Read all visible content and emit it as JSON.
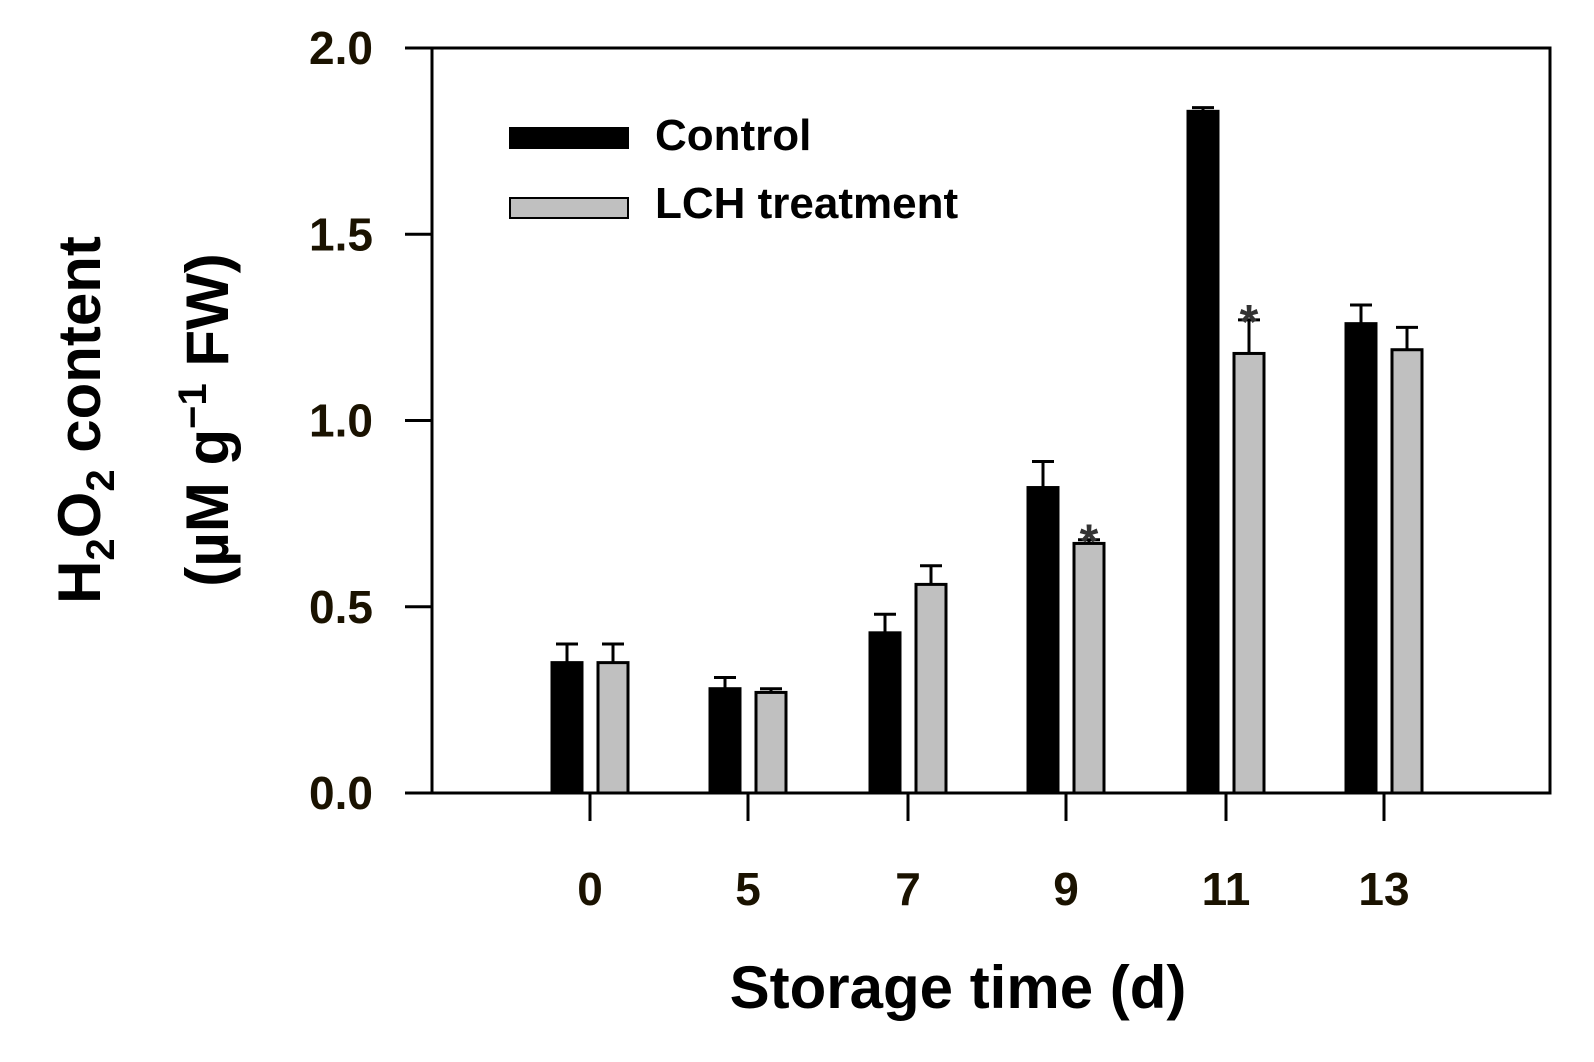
{
  "chart_data": {
    "type": "bar",
    "title": "",
    "xlabel": "Storage time (d)",
    "ylabel": {
      "line1": {
        "prefix": "H",
        "sub1": "2",
        "mid": "O",
        "sub2": "2",
        "suffix": " content"
      },
      "line2": {
        "prefix": "(µM g",
        "sup": "−1",
        "suffix": " FW)"
      }
    },
    "categories": [
      "0",
      "5",
      "7",
      "9",
      "11",
      "13"
    ],
    "series": [
      {
        "name": "Control",
        "color": "#000000",
        "values": [
          0.35,
          0.28,
          0.43,
          0.82,
          1.83,
          1.26
        ],
        "errors": [
          0.05,
          0.03,
          0.05,
          0.07,
          0.01,
          0.05
        ]
      },
      {
        "name": "LCH treatment",
        "color": "#c0c0c0",
        "values": [
          0.35,
          0.27,
          0.56,
          0.67,
          1.18,
          1.19
        ],
        "errors": [
          0.05,
          0.01,
          0.05,
          0.01,
          0.09,
          0.06
        ]
      }
    ],
    "significance": [
      {
        "category": "9",
        "series": "LCH treatment",
        "label": "*"
      },
      {
        "category": "11",
        "series": "LCH treatment",
        "label": "*"
      }
    ],
    "ylim": [
      0,
      2.0
    ],
    "yticks": [
      "0.0",
      "0.5",
      "1.0",
      "1.5",
      "2.0"
    ],
    "legend": {
      "position": "top-left",
      "entries": [
        "Control",
        "LCH treatment"
      ]
    },
    "grid": false
  }
}
